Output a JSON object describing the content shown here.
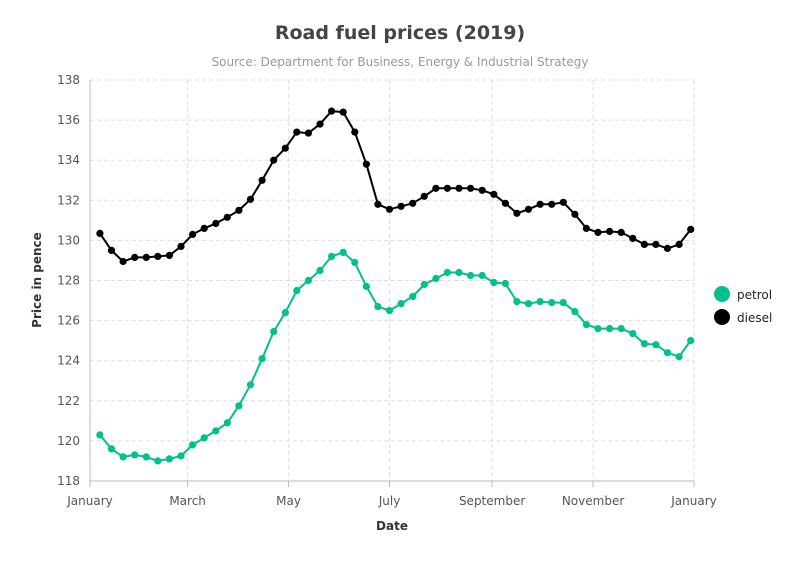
{
  "chart_data": {
    "type": "line",
    "title": "Road fuel prices (2019)",
    "subtitle": "Source: Department for Business, Energy & Industrial Strategy",
    "xlabel": "Date",
    "ylabel": "Price in pence",
    "ylim": [
      118,
      138
    ],
    "y_ticks": [
      118,
      120,
      122,
      124,
      126,
      128,
      130,
      132,
      134,
      136,
      138
    ],
    "x_tick_labels": [
      "January",
      "March",
      "May",
      "July",
      "September",
      "November",
      "January"
    ],
    "x_tick_dates": [
      "2019-01-01",
      "2019-03-01",
      "2019-05-01",
      "2019-07-01",
      "2019-09-01",
      "2019-11-01",
      "2020-01-01"
    ],
    "x_range": [
      "2019-01-01",
      "2020-01-01"
    ],
    "grid": true,
    "legend_position": "right",
    "x": [
      "2019-01-07",
      "2019-01-14",
      "2019-01-21",
      "2019-01-28",
      "2019-02-04",
      "2019-02-11",
      "2019-02-18",
      "2019-02-25",
      "2019-03-04",
      "2019-03-11",
      "2019-03-18",
      "2019-03-25",
      "2019-04-01",
      "2019-04-08",
      "2019-04-15",
      "2019-04-22",
      "2019-04-29",
      "2019-05-06",
      "2019-05-13",
      "2019-05-20",
      "2019-05-27",
      "2019-06-03",
      "2019-06-10",
      "2019-06-17",
      "2019-06-24",
      "2019-07-01",
      "2019-07-08",
      "2019-07-15",
      "2019-07-22",
      "2019-07-29",
      "2019-08-05",
      "2019-08-12",
      "2019-08-19",
      "2019-08-26",
      "2019-09-02",
      "2019-09-09",
      "2019-09-16",
      "2019-09-23",
      "2019-09-30",
      "2019-10-07",
      "2019-10-14",
      "2019-10-21",
      "2019-10-28",
      "2019-11-04",
      "2019-11-11",
      "2019-11-18",
      "2019-11-25",
      "2019-12-02",
      "2019-12-09",
      "2019-12-16",
      "2019-12-23",
      "2019-12-30"
    ],
    "series": [
      {
        "name": "petrol",
        "color": "#00c08b",
        "values": [
          120.3,
          119.6,
          119.2,
          119.3,
          119.2,
          119.0,
          119.1,
          119.25,
          119.8,
          120.15,
          120.5,
          120.9,
          121.75,
          122.8,
          124.1,
          125.45,
          126.4,
          127.5,
          128.0,
          128.5,
          129.2,
          129.4,
          128.9,
          127.7,
          126.7,
          126.5,
          126.85,
          127.2,
          127.8,
          128.1,
          128.4,
          128.4,
          128.25,
          128.25,
          127.9,
          127.85,
          126.95,
          126.85,
          126.95,
          126.9,
          126.9,
          126.45,
          125.8,
          125.6,
          125.6,
          125.6,
          125.35,
          124.85,
          124.8,
          124.4,
          124.2,
          125.0
        ]
      },
      {
        "name": "diesel",
        "color": "#000000",
        "values": [
          130.35,
          129.5,
          128.95,
          129.15,
          129.15,
          129.2,
          129.25,
          129.7,
          130.3,
          130.6,
          130.85,
          131.15,
          131.5,
          132.05,
          133.0,
          134.0,
          134.6,
          135.4,
          135.35,
          135.8,
          136.45,
          136.4,
          135.4,
          133.8,
          131.8,
          131.55,
          131.7,
          131.85,
          132.2,
          132.6,
          132.6,
          132.6,
          132.6,
          132.5,
          132.3,
          131.85,
          131.35,
          131.55,
          131.8,
          131.8,
          131.9,
          131.3,
          130.6,
          130.4,
          130.45,
          130.4,
          130.1,
          129.8,
          129.8,
          129.6,
          129.8,
          130.55
        ]
      }
    ]
  }
}
